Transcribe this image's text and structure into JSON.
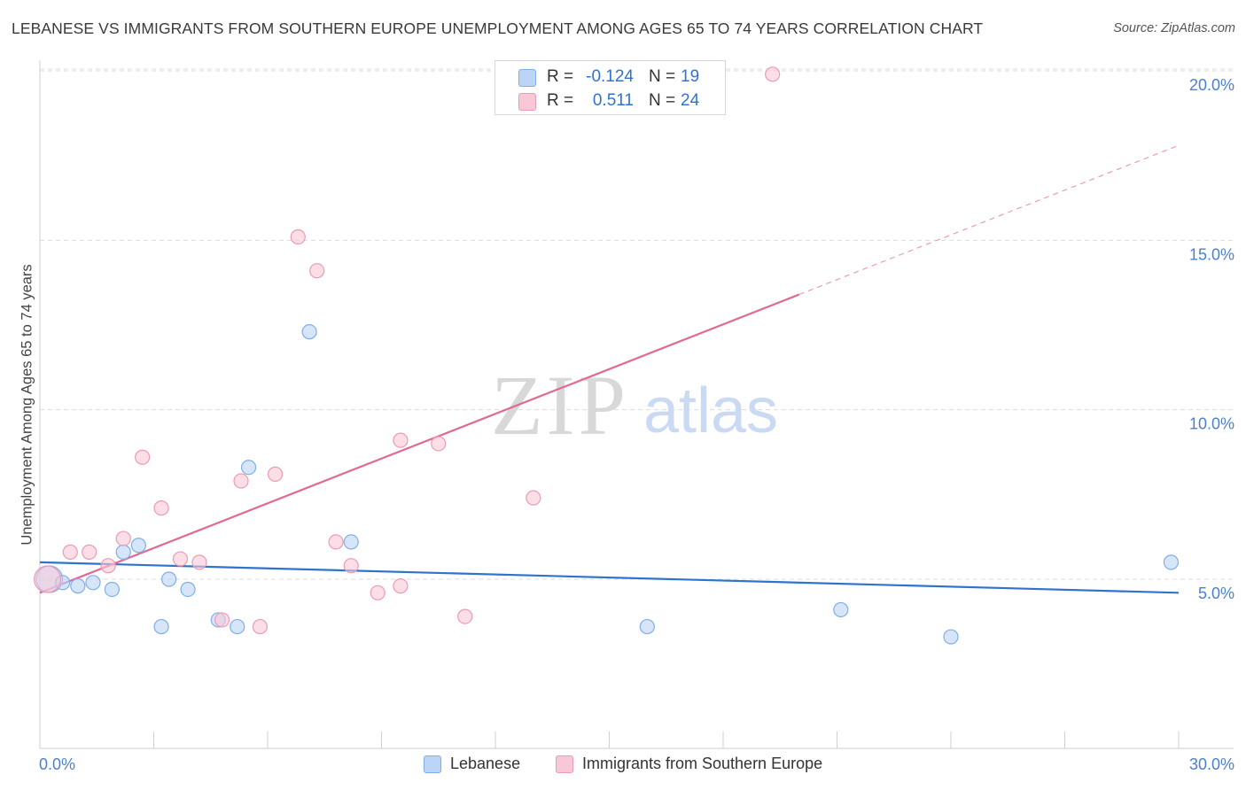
{
  "title": "LEBANESE VS IMMIGRANTS FROM SOUTHERN EUROPE UNEMPLOYMENT AMONG AGES 65 TO 74 YEARS CORRELATION CHART",
  "source": "Source: ZipAtlas.com",
  "watermark": {
    "zip": "ZIP",
    "atlas": "atlas"
  },
  "colors": {
    "blue_fill": "#bcd4f5",
    "blue_stroke": "#7faee8",
    "blue_line": "#2f73cf",
    "pink_fill": "#f8c8d6",
    "pink_stroke": "#ee9ab4",
    "pink_line": "#e06a94",
    "axis_text": "#4a80d0",
    "grid": "#dcdcdc"
  },
  "stats": {
    "rows": [
      {
        "r_label": "R =",
        "r_value": "-0.124",
        "n_label": "N =",
        "n_value": "19",
        "series": "blue"
      },
      {
        "r_label": "R =",
        "r_value": "0.511",
        "n_label": "N =",
        "n_value": "24",
        "series": "pink"
      }
    ]
  },
  "chart_data": {
    "type": "scatter",
    "title": "LEBANESE VS IMMIGRANTS FROM SOUTHERN EUROPE UNEMPLOYMENT AMONG AGES 65 TO 74 YEARS CORRELATION CHART",
    "xlabel": "",
    "ylabel": "Unemployment Among Ages 65 to 74 years",
    "xlim": [
      0,
      30
    ],
    "ylim": [
      0,
      20.5
    ],
    "x_tick_labels": [
      "0.0%",
      "30.0%"
    ],
    "y_ticks": [
      5,
      10,
      15,
      20
    ],
    "y_tick_labels": [
      "5.0%",
      "10.0%",
      "15.0%",
      "20.0%"
    ],
    "grid": true,
    "legend_position": "bottom-center",
    "series": [
      {
        "name": "Lebanese",
        "color": "blue",
        "points": [
          {
            "x": 0.25,
            "y": 5.0,
            "big": true
          },
          {
            "x": 0.6,
            "y": 4.9
          },
          {
            "x": 1.0,
            "y": 4.8
          },
          {
            "x": 1.4,
            "y": 4.9
          },
          {
            "x": 1.9,
            "y": 4.7
          },
          {
            "x": 2.2,
            "y": 5.8
          },
          {
            "x": 2.6,
            "y": 6.0
          },
          {
            "x": 3.2,
            "y": 3.6
          },
          {
            "x": 3.4,
            "y": 5.0
          },
          {
            "x": 3.9,
            "y": 4.7
          },
          {
            "x": 4.7,
            "y": 3.8
          },
          {
            "x": 5.2,
            "y": 3.6
          },
          {
            "x": 5.5,
            "y": 8.3
          },
          {
            "x": 7.1,
            "y": 12.3
          },
          {
            "x": 8.2,
            "y": 6.1
          },
          {
            "x": 16.0,
            "y": 3.6
          },
          {
            "x": 21.1,
            "y": 4.1
          },
          {
            "x": 24.0,
            "y": 3.3
          },
          {
            "x": 29.8,
            "y": 5.5
          }
        ],
        "trend": {
          "x0": 0.0,
          "y0": 5.5,
          "x1": 30.0,
          "y1": 4.6
        }
      },
      {
        "name": "Immigrants from Southern Europe",
        "color": "pink",
        "points": [
          {
            "x": 0.2,
            "y": 5.0,
            "big": true
          },
          {
            "x": 0.8,
            "y": 5.8
          },
          {
            "x": 1.3,
            "y": 5.8
          },
          {
            "x": 1.8,
            "y": 5.4
          },
          {
            "x": 2.2,
            "y": 6.2
          },
          {
            "x": 2.7,
            "y": 8.6
          },
          {
            "x": 3.2,
            "y": 7.1
          },
          {
            "x": 3.7,
            "y": 5.6
          },
          {
            "x": 4.2,
            "y": 5.5
          },
          {
            "x": 4.8,
            "y": 3.8
          },
          {
            "x": 5.3,
            "y": 7.9
          },
          {
            "x": 5.8,
            "y": 3.6
          },
          {
            "x": 6.2,
            "y": 8.1
          },
          {
            "x": 6.8,
            "y": 15.1
          },
          {
            "x": 7.3,
            "y": 14.1
          },
          {
            "x": 7.8,
            "y": 6.1
          },
          {
            "x": 8.2,
            "y": 5.4
          },
          {
            "x": 8.9,
            "y": 4.6
          },
          {
            "x": 9.5,
            "y": 9.1
          },
          {
            "x": 9.5,
            "y": 4.8
          },
          {
            "x": 10.5,
            "y": 9.0
          },
          {
            "x": 11.2,
            "y": 3.9
          },
          {
            "x": 13.0,
            "y": 7.4
          },
          {
            "x": 19.3,
            "y": 19.9
          }
        ],
        "trend": {
          "x0": 0.0,
          "y0": 4.6,
          "x1": 20.0,
          "y1": 13.4,
          "dashed_to_x": 30.0,
          "dashed_to_y": 17.8
        }
      }
    ]
  },
  "legend": {
    "items": [
      {
        "label": "Lebanese",
        "series": "blue"
      },
      {
        "label": "Immigrants from Southern Europe",
        "series": "pink"
      }
    ]
  }
}
